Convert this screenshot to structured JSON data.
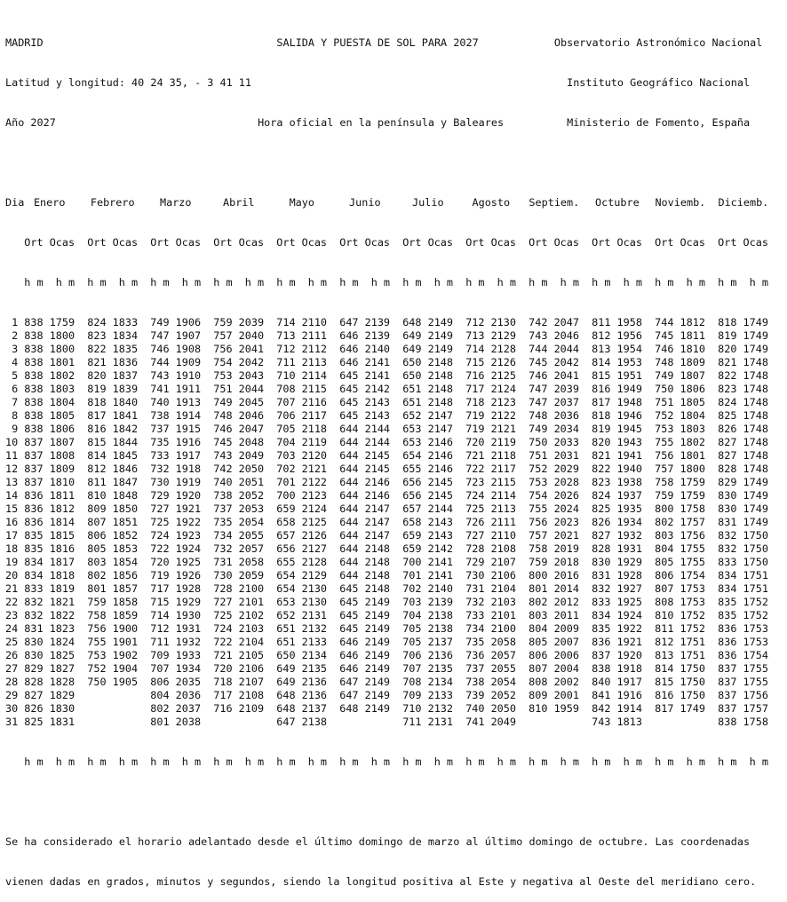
{
  "header": {
    "city": "MADRID",
    "coordinates": "Latitud y longitud: 40 24 35, - 3 41 11",
    "year": "Año 2027",
    "title": "SALIDA Y PUESTA DE SOL PARA 2027",
    "subtitle": "Hora oficial en la península y Baleares",
    "org_1": "Observatorio Astronómico Nacional",
    "org_2": "Instituto Geográfico Nacional",
    "org_3": "Ministerio de Fomento, España"
  },
  "table": {
    "day_label": "Dia",
    "rise_label": "Ort",
    "set_label": "Ocas",
    "unit_label": "h m",
    "months": [
      {
        "name": "Enero",
        "rise": [
          838,
          838,
          838,
          838,
          838,
          838,
          838,
          838,
          838,
          837,
          837,
          837,
          837,
          836,
          836,
          836,
          835,
          835,
          834,
          834,
          833,
          832,
          832,
          831,
          830,
          830,
          829,
          828,
          827,
          826,
          825
        ],
        "set": [
          1759,
          1800,
          1800,
          1801,
          1802,
          1803,
          1804,
          1805,
          1806,
          1807,
          1808,
          1809,
          1810,
          1811,
          1812,
          1814,
          1815,
          1816,
          1817,
          1818,
          1819,
          1821,
          1822,
          1823,
          1824,
          1825,
          1827,
          1828,
          1829,
          1830,
          1831
        ]
      },
      {
        "name": "Febrero",
        "rise": [
          824,
          823,
          822,
          821,
          820,
          819,
          818,
          817,
          816,
          815,
          814,
          812,
          811,
          810,
          809,
          807,
          806,
          805,
          803,
          802,
          801,
          759,
          758,
          756,
          755,
          753,
          752,
          750
        ],
        "set": [
          1833,
          1834,
          1835,
          1836,
          1837,
          1839,
          1840,
          1841,
          1842,
          1844,
          1845,
          1846,
          1847,
          1848,
          1850,
          1851,
          1852,
          1853,
          1854,
          1856,
          1857,
          1858,
          1859,
          1900,
          1901,
          1902,
          1904,
          1905
        ]
      },
      {
        "name": "Marzo",
        "rise": [
          749,
          747,
          746,
          744,
          743,
          741,
          740,
          738,
          737,
          735,
          733,
          732,
          730,
          729,
          727,
          725,
          724,
          722,
          720,
          719,
          717,
          715,
          714,
          712,
          711,
          709,
          707,
          806,
          804,
          802,
          801
        ],
        "set": [
          1906,
          1907,
          1908,
          1909,
          1910,
          1911,
          1913,
          1914,
          1915,
          1916,
          1917,
          1918,
          1919,
          1920,
          1921,
          1922,
          1923,
          1924,
          1925,
          1926,
          1928,
          1929,
          1930,
          1931,
          1932,
          1933,
          1934,
          2035,
          2036,
          2037,
          2038
        ]
      },
      {
        "name": "Abril",
        "rise": [
          759,
          757,
          756,
          754,
          753,
          751,
          749,
          748,
          746,
          745,
          743,
          742,
          740,
          738,
          737,
          735,
          734,
          732,
          731,
          730,
          728,
          727,
          725,
          724,
          722,
          721,
          720,
          718,
          717,
          716
        ],
        "set": [
          2039,
          2040,
          2041,
          2042,
          2043,
          2044,
          2045,
          2046,
          2047,
          2048,
          2049,
          2050,
          2051,
          2052,
          2053,
          2054,
          2055,
          2057,
          2058,
          2059,
          2100,
          2101,
          2102,
          2103,
          2104,
          2105,
          2106,
          2107,
          2108,
          2109
        ]
      },
      {
        "name": "Mayo",
        "rise": [
          714,
          713,
          712,
          711,
          710,
          708,
          707,
          706,
          705,
          704,
          703,
          702,
          701,
          700,
          659,
          658,
          657,
          656,
          655,
          654,
          654,
          653,
          652,
          651,
          651,
          650,
          649,
          649,
          648,
          648,
          647
        ],
        "set": [
          2110,
          2111,
          2112,
          2113,
          2114,
          2115,
          2116,
          2117,
          2118,
          2119,
          2120,
          2121,
          2122,
          2123,
          2124,
          2125,
          2126,
          2127,
          2128,
          2129,
          2130,
          2130,
          2131,
          2132,
          2133,
          2134,
          2135,
          2136,
          2136,
          2137,
          2138
        ]
      },
      {
        "name": "Junio",
        "rise": [
          647,
          646,
          646,
          646,
          645,
          645,
          645,
          645,
          644,
          644,
          644,
          644,
          644,
          644,
          644,
          644,
          644,
          644,
          644,
          644,
          645,
          645,
          645,
          645,
          646,
          646,
          646,
          647,
          647,
          648
        ],
        "set": [
          2139,
          2139,
          2140,
          2141,
          2141,
          2142,
          2143,
          2143,
          2144,
          2144,
          2145,
          2145,
          2146,
          2146,
          2147,
          2147,
          2147,
          2148,
          2148,
          2148,
          2148,
          2149,
          2149,
          2149,
          2149,
          2149,
          2149,
          2149,
          2149,
          2149
        ]
      },
      {
        "name": "Julio",
        "rise": [
          648,
          649,
          649,
          650,
          650,
          651,
          651,
          652,
          653,
          653,
          654,
          655,
          656,
          656,
          657,
          658,
          659,
          659,
          700,
          701,
          702,
          703,
          704,
          705,
          705,
          706,
          707,
          708,
          709,
          710,
          711
        ],
        "set": [
          2149,
          2149,
          2149,
          2148,
          2148,
          2148,
          2148,
          2147,
          2147,
          2146,
          2146,
          2146,
          2145,
          2145,
          2144,
          2143,
          2143,
          2142,
          2141,
          2141,
          2140,
          2139,
          2138,
          2138,
          2137,
          2136,
          2135,
          2134,
          2133,
          2132,
          2131
        ]
      },
      {
        "name": "Agosto",
        "rise": [
          712,
          713,
          714,
          715,
          716,
          717,
          718,
          719,
          719,
          720,
          721,
          722,
          723,
          724,
          725,
          726,
          727,
          728,
          729,
          730,
          731,
          732,
          733,
          734,
          735,
          736,
          737,
          738,
          739,
          740,
          741
        ],
        "set": [
          2130,
          2129,
          2128,
          2126,
          2125,
          2124,
          2123,
          2122,
          2121,
          2119,
          2118,
          2117,
          2115,
          2114,
          2113,
          2111,
          2110,
          2108,
          2107,
          2106,
          2104,
          2103,
          2101,
          2100,
          2058,
          2057,
          2055,
          2054,
          2052,
          2050,
          2049
        ]
      },
      {
        "name": "Septiem.",
        "rise": [
          742,
          743,
          744,
          745,
          746,
          747,
          747,
          748,
          749,
          750,
          751,
          752,
          753,
          754,
          755,
          756,
          757,
          758,
          759,
          800,
          801,
          802,
          803,
          804,
          805,
          806,
          807,
          808,
          809,
          810
        ],
        "set": [
          2047,
          2046,
          2044,
          2042,
          2041,
          2039,
          2037,
          2036,
          2034,
          2033,
          2031,
          2029,
          2028,
          2026,
          2024,
          2023,
          2021,
          2019,
          2018,
          2016,
          2014,
          2012,
          2011,
          2009,
          2007,
          2006,
          2004,
          2002,
          2001,
          1959
        ]
      },
      {
        "name": "Octubre",
        "rise": [
          811,
          812,
          813,
          814,
          815,
          816,
          817,
          818,
          819,
          820,
          821,
          822,
          823,
          824,
          825,
          826,
          827,
          828,
          830,
          831,
          832,
          833,
          834,
          835,
          836,
          837,
          838,
          840,
          841,
          842,
          743
        ],
        "set": [
          1958,
          1956,
          1954,
          1953,
          1951,
          1949,
          1948,
          1946,
          1945,
          1943,
          1941,
          1940,
          1938,
          1937,
          1935,
          1934,
          1932,
          1931,
          1929,
          1928,
          1927,
          1925,
          1924,
          1922,
          1921,
          1920,
          1918,
          1917,
          1916,
          1914,
          1813
        ]
      },
      {
        "name": "Noviemb.",
        "rise": [
          744,
          745,
          746,
          748,
          749,
          750,
          751,
          752,
          753,
          755,
          756,
          757,
          758,
          759,
          800,
          802,
          803,
          804,
          805,
          806,
          807,
          808,
          810,
          811,
          812,
          813,
          814,
          815,
          816,
          817
        ],
        "set": [
          1812,
          1811,
          1810,
          1809,
          1807,
          1806,
          1805,
          1804,
          1803,
          1802,
          1801,
          1800,
          1759,
          1759,
          1758,
          1757,
          1756,
          1755,
          1755,
          1754,
          1753,
          1753,
          1752,
          1752,
          1751,
          1751,
          1750,
          1750,
          1750,
          1749
        ]
      },
      {
        "name": "Diciemb.",
        "rise": [
          818,
          819,
          820,
          821,
          822,
          823,
          824,
          825,
          826,
          827,
          827,
          828,
          829,
          830,
          830,
          831,
          832,
          832,
          833,
          834,
          834,
          835,
          835,
          836,
          836,
          836,
          837,
          837,
          837,
          837,
          838
        ],
        "set": [
          1749,
          1749,
          1749,
          1748,
          1748,
          1748,
          1748,
          1748,
          1748,
          1748,
          1748,
          1748,
          1749,
          1749,
          1749,
          1749,
          1750,
          1750,
          1750,
          1751,
          1751,
          1752,
          1752,
          1753,
          1753,
          1754,
          1755,
          1755,
          1756,
          1757,
          1758
        ]
      }
    ]
  },
  "footer": {
    "note_line_1": "Se ha considerado el horario adelantado desde el último domingo de marzo al último domingo de octubre. Las coordenadas",
    "note_line_2": "vienen dadas en grados, minutos y segundos, siendo la longitud positiva al Este y negativa al Oeste del meridiano cero."
  }
}
